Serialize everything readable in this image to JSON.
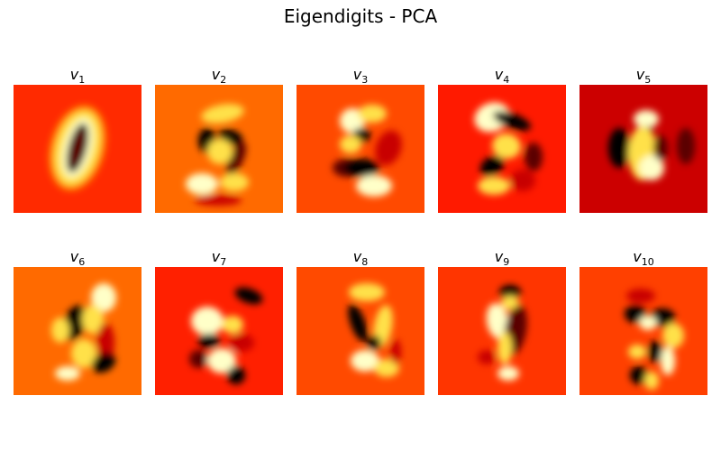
{
  "figure": {
    "title": "Eigendigits - PCA"
  },
  "colormap": "hot",
  "colors": {
    "background": "#ffffff",
    "hot_stops": [
      "#000000",
      "#5a0000",
      "#c80000",
      "#ff3c00",
      "#ff9600",
      "#ffe14a",
      "#ffffc8"
    ]
  },
  "panels": [
    {
      "var": "v",
      "sub": "1",
      "bg": "#ff2a00",
      "feature": "zero-shaped ring with dark center stroke"
    },
    {
      "var": "v",
      "sub": "2",
      "bg": "#ff6a00",
      "feature": "nine-like pattern with dark blobs"
    },
    {
      "var": "v",
      "sub": "3",
      "bg": "#ff4a00",
      "feature": "eight-like pattern"
    },
    {
      "var": "v",
      "sub": "4",
      "bg": "#ff1a00",
      "feature": "S-shaped pattern"
    },
    {
      "var": "v",
      "sub": "5",
      "bg": "#cc0000",
      "feature": "vertical bright stroke with dark sides"
    },
    {
      "var": "v",
      "sub": "6",
      "bg": "#ff6a00",
      "feature": "diagonal bright and dark bands"
    },
    {
      "var": "v",
      "sub": "7",
      "bg": "#ff2000",
      "feature": "scattered bright and dark blobs"
    },
    {
      "var": "v",
      "sub": "8",
      "bg": "#ff4a00",
      "feature": "nine-like diagonal pattern"
    },
    {
      "var": "v",
      "sub": "9",
      "bg": "#ff3500",
      "feature": "vertical slanted stroke"
    },
    {
      "var": "v",
      "sub": "10",
      "bg": "#ff4000",
      "feature": "checkered bright and dark blobs"
    }
  ]
}
